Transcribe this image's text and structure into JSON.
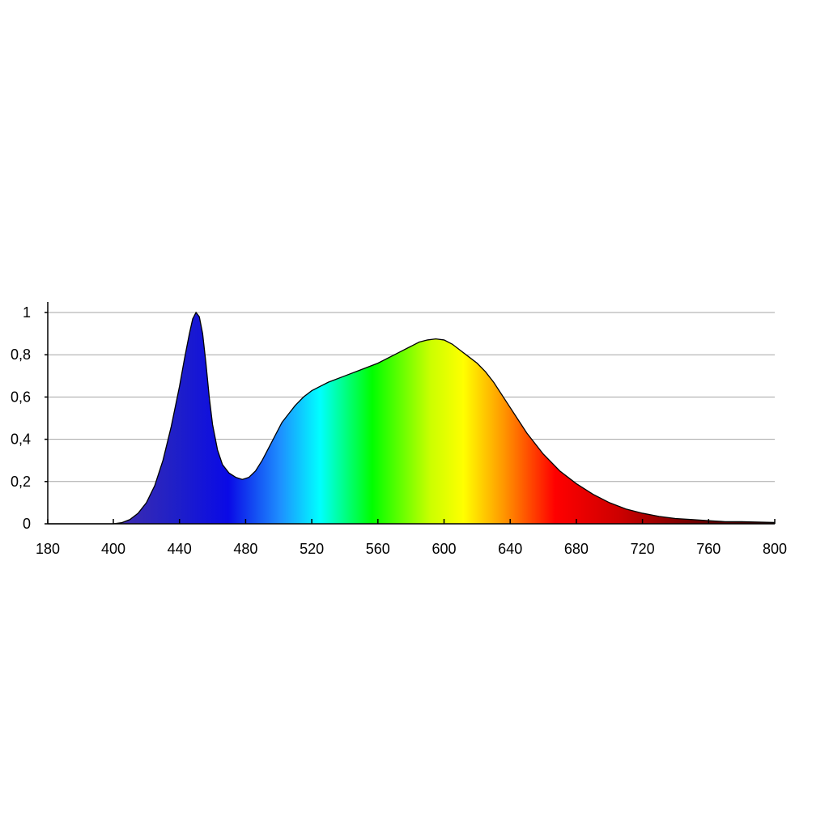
{
  "chart_data": {
    "type": "area",
    "title": "",
    "xlabel": "",
    "ylabel": "",
    "xlim": [
      180,
      800
    ],
    "ylim": [
      0,
      1
    ],
    "grid": true,
    "legend": "none",
    "fill": "visible-spectrum-gradient",
    "x_ticks": [
      180,
      400,
      440,
      480,
      520,
      560,
      600,
      640,
      680,
      720,
      760,
      800
    ],
    "x_tick_labels": [
      "180",
      "400",
      "440",
      "480",
      "520",
      "560",
      "600",
      "640",
      "680",
      "720",
      "760",
      "800"
    ],
    "y_ticks": [
      0,
      0.2,
      0.4,
      0.6,
      0.8,
      1
    ],
    "y_tick_labels": [
      "0",
      "0,2",
      "0,4",
      "0,6",
      "0,8",
      "1"
    ],
    "series": [
      {
        "x": [
          180,
          400,
          405,
          410,
          415,
          420,
          425,
          430,
          435,
          440,
          443,
          446,
          448,
          450,
          452,
          454,
          456,
          458,
          460,
          463,
          466,
          470,
          474,
          478,
          482,
          486,
          490,
          494,
          498,
          502,
          506,
          510,
          515,
          520,
          525,
          530,
          540,
          550,
          560,
          570,
          575,
          580,
          585,
          590,
          595,
          600,
          605,
          610,
          615,
          620,
          625,
          630,
          640,
          650,
          660,
          670,
          680,
          690,
          700,
          710,
          720,
          730,
          740,
          750,
          760,
          770,
          780,
          790,
          800
        ],
        "y": [
          0,
          0,
          0.005,
          0.02,
          0.05,
          0.1,
          0.18,
          0.3,
          0.46,
          0.65,
          0.78,
          0.9,
          0.97,
          1.0,
          0.98,
          0.9,
          0.76,
          0.6,
          0.47,
          0.35,
          0.28,
          0.24,
          0.22,
          0.21,
          0.22,
          0.25,
          0.3,
          0.36,
          0.42,
          0.48,
          0.52,
          0.56,
          0.6,
          0.63,
          0.65,
          0.67,
          0.7,
          0.73,
          0.76,
          0.8,
          0.82,
          0.84,
          0.86,
          0.87,
          0.875,
          0.87,
          0.85,
          0.82,
          0.79,
          0.76,
          0.72,
          0.67,
          0.55,
          0.43,
          0.33,
          0.25,
          0.19,
          0.14,
          0.1,
          0.07,
          0.05,
          0.035,
          0.025,
          0.02,
          0.015,
          0.01,
          0.01,
          0.008,
          0.006
        ]
      }
    ]
  }
}
